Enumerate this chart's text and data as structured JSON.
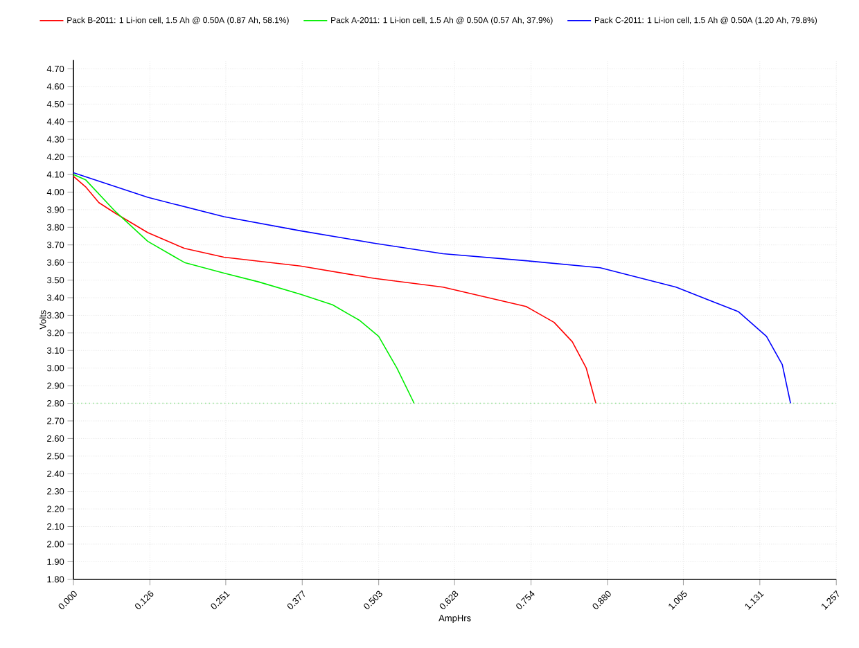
{
  "chart_data": {
    "type": "line",
    "xlabel": "AmpHrs",
    "ylabel": "Volts",
    "xlim": [
      0,
      1.257
    ],
    "ylim": [
      1.8,
      4.75
    ],
    "xticks": [
      {
        "value": 0,
        "label": "0.000"
      },
      {
        "value": 0.126,
        "label": "0.126"
      },
      {
        "value": 0.251,
        "label": "0.251"
      },
      {
        "value": 0.377,
        "label": "0.377"
      },
      {
        "value": 0.503,
        "label": "0.503"
      },
      {
        "value": 0.628,
        "label": "0.628"
      },
      {
        "value": 0.754,
        "label": "0.754"
      },
      {
        "value": 0.88,
        "label": "0.880"
      },
      {
        "value": 1.005,
        "label": "1.005"
      },
      {
        "value": 1.131,
        "label": "1.131"
      },
      {
        "value": 1.257,
        "label": "1.257"
      }
    ],
    "yticks": [
      {
        "value": 1.8,
        "label": "1.80"
      },
      {
        "value": 1.9,
        "label": "1.90"
      },
      {
        "value": 2.0,
        "label": "2.00"
      },
      {
        "value": 2.1,
        "label": "2.10"
      },
      {
        "value": 2.2,
        "label": "2.20"
      },
      {
        "value": 2.3,
        "label": "2.30"
      },
      {
        "value": 2.4,
        "label": "2.40"
      },
      {
        "value": 2.5,
        "label": "2.50"
      },
      {
        "value": 2.6,
        "label": "2.60"
      },
      {
        "value": 2.7,
        "label": "2.70"
      },
      {
        "value": 2.8,
        "label": "2.80"
      },
      {
        "value": 2.9,
        "label": "2.90"
      },
      {
        "value": 3.0,
        "label": "3.00"
      },
      {
        "value": 3.1,
        "label": "3.10"
      },
      {
        "value": 3.2,
        "label": "3.20"
      },
      {
        "value": 3.3,
        "label": "3.30"
      },
      {
        "value": 3.4,
        "label": "3.40"
      },
      {
        "value": 3.5,
        "label": "3.50"
      },
      {
        "value": 3.6,
        "label": "3.60"
      },
      {
        "value": 3.7,
        "label": "3.70"
      },
      {
        "value": 3.8,
        "label": "3.80"
      },
      {
        "value": 3.9,
        "label": "3.90"
      },
      {
        "value": 4.0,
        "label": "4.00"
      },
      {
        "value": 4.1,
        "label": "4.10"
      },
      {
        "value": 4.2,
        "label": "4.20"
      },
      {
        "value": 4.3,
        "label": "4.30"
      },
      {
        "value": 4.4,
        "label": "4.40"
      },
      {
        "value": 4.5,
        "label": "4.50"
      },
      {
        "value": 4.6,
        "label": "4.60"
      },
      {
        "value": 4.7,
        "label": "4.70"
      }
    ],
    "grid": true,
    "legend": "top",
    "marker": "none",
    "line_style": "solid",
    "ref_lines": [
      {
        "axis": "y",
        "value": 2.8,
        "color": "#90e090",
        "line_style": "dotted"
      }
    ],
    "series": [
      {
        "name": "Pack B-2011: 1 Li-ion cell, 1.5 Ah @ 0.50A (0.87 Ah, 58.1%)",
        "color": "#ff0000",
        "x": [
          0,
          0.02,
          0.042,
          0.069,
          0.1225,
          0.183,
          0.248,
          0.374,
          0.495,
          0.609,
          0.746,
          0.792,
          0.822,
          0.845,
          0.86,
          0.861
        ],
        "values": [
          4.09,
          4.03,
          3.94,
          3.88,
          3.77,
          3.68,
          3.63,
          3.58,
          3.51,
          3.46,
          3.35,
          3.26,
          3.15,
          3.0,
          2.81,
          2.8
        ]
      },
      {
        "name": "Pack A-2011: 1 Li-ion cell, 1.5 Ah @ 0.50A (0.57 Ah, 37.9%)",
        "color": "#00ee00",
        "x": [
          0,
          0.02,
          0.069,
          0.1225,
          0.183,
          0.248,
          0.305,
          0.374,
          0.427,
          0.472,
          0.503,
          0.533,
          0.56,
          0.561
        ],
        "values": [
          4.1,
          4.07,
          3.89,
          3.72,
          3.6,
          3.54,
          3.49,
          3.42,
          3.36,
          3.27,
          3.18,
          3.0,
          2.81,
          2.8
        ]
      },
      {
        "name": "Pack C-2011: 1 Li-ion cell, 1.5 Ah @ 0.50A (1.20 Ah, 79.8%)",
        "color": "#0000ff",
        "x": [
          0,
          0.1225,
          0.248,
          0.374,
          0.495,
          0.609,
          0.746,
          0.868,
          0.993,
          1.096,
          1.142,
          1.168,
          1.181,
          1.182
        ],
        "values": [
          4.11,
          3.97,
          3.86,
          3.78,
          3.71,
          3.65,
          3.61,
          3.57,
          3.46,
          3.32,
          3.18,
          3.02,
          2.81,
          2.8
        ]
      }
    ]
  }
}
